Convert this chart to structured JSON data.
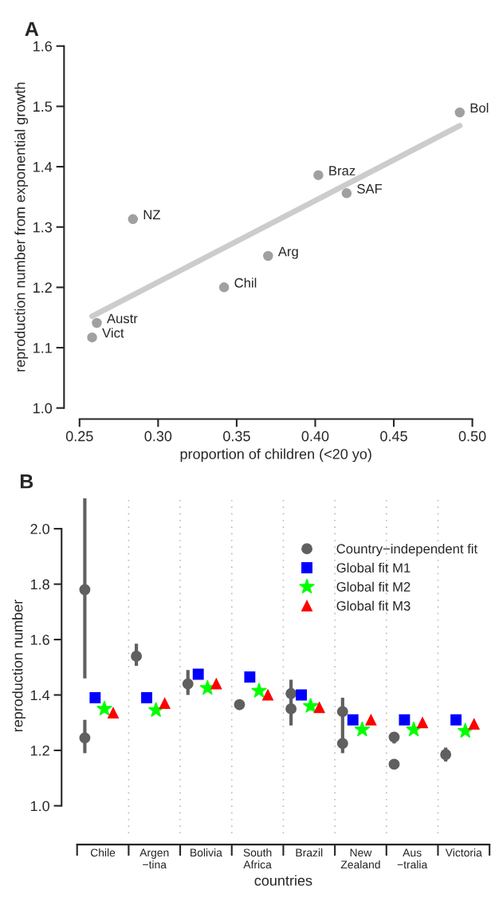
{
  "chart_data": [
    {
      "type": "scatter",
      "title": "A",
      "xlabel": "proportion of children (<20 yo)",
      "ylabel": "reproduction number from exponential growth",
      "xlim": [
        0.25,
        0.5
      ],
      "xticks": [
        {
          "value": 0.25,
          "label": "0.25"
        },
        {
          "value": 0.3,
          "label": "0.30"
        },
        {
          "value": 0.35,
          "label": "0.35"
        },
        {
          "value": 0.4,
          "label": "0.40"
        },
        {
          "value": 0.45,
          "label": "0.45"
        },
        {
          "value": 0.5,
          "label": "0.50"
        }
      ],
      "ylim": [
        1.0,
        1.6
      ],
      "yticks": [
        {
          "value": 1.0,
          "label": "1.0"
        },
        {
          "value": 1.1,
          "label": "1.1"
        },
        {
          "value": 1.2,
          "label": "1.2"
        },
        {
          "value": 1.3,
          "label": "1.3"
        },
        {
          "value": 1.4,
          "label": "1.4"
        },
        {
          "value": 1.5,
          "label": "1.5"
        },
        {
          "value": 1.6,
          "label": "1.6"
        }
      ],
      "grid": false,
      "legend": false,
      "series": [
        {
          "type": "line",
          "color": "#cccccc",
          "x": [
            0.258,
            0.492
          ],
          "values": [
            1.152,
            1.468
          ]
        },
        {
          "type": "scatter",
          "color": "#a0a0a0",
          "marker": "circle",
          "x": [
            0.492,
            0.402,
            0.42,
            0.284,
            0.37,
            0.342,
            0.261,
            0.258
          ],
          "values": [
            1.49,
            1.386,
            1.356,
            1.313,
            1.252,
            1.2,
            1.141,
            1.117
          ]
        }
      ],
      "annotations": [
        {
          "text": "Bol",
          "x": 0.492,
          "y": 1.49
        },
        {
          "text": "Braz",
          "x": 0.402,
          "y": 1.386
        },
        {
          "text": "SAF",
          "x": 0.42,
          "y": 1.356
        },
        {
          "text": "NZ",
          "x": 0.284,
          "y": 1.313
        },
        {
          "text": "Arg",
          "x": 0.37,
          "y": 1.252
        },
        {
          "text": "Chil",
          "x": 0.342,
          "y": 1.2
        },
        {
          "text": "Austr",
          "x": 0.261,
          "y": 1.141
        },
        {
          "text": "Vict",
          "x": 0.258,
          "y": 1.117
        }
      ]
    },
    {
      "type": "scatter",
      "title": "B",
      "xlabel": "countries",
      "ylabel": "reproduction number",
      "categories": [
        "Chile",
        "Argen\n−tina",
        "Bolivia",
        "South\nAfrica",
        "Brazil",
        "New\nZealand",
        "Aus\n−tralia",
        "Victoria"
      ],
      "ylim": [
        0.9,
        2.11
      ],
      "yticks": [
        {
          "value": 1.0,
          "label": "1.0"
        },
        {
          "value": 1.2,
          "label": "1.2"
        },
        {
          "value": 1.4,
          "label": "1.4"
        },
        {
          "value": 1.6,
          "label": "1.6"
        },
        {
          "value": 1.8,
          "label": "1.8"
        },
        {
          "value": 2.0,
          "label": "2.0"
        }
      ],
      "grid": "x",
      "legend": "top right",
      "series": [
        {
          "name": "Country−independent fit",
          "color": "#606060",
          "marker": "circle",
          "values": [
            1.78,
            1.54,
            1.44,
            1.365,
            1.405,
            1.34,
            1.248,
            1.185
          ],
          "errors": [
            [
              1.46,
              2.11
            ],
            [
              1.505,
              1.585
            ],
            [
              1.4,
              1.49
            ],
            null,
            [
              1.29,
              1.455
            ],
            [
              1.19,
              1.39
            ],
            [
              1.225,
              1.265
            ],
            [
              1.16,
              1.21
            ]
          ]
        },
        {
          "color": "#606060",
          "marker": "circle",
          "values": [
            1.245,
            null,
            null,
            null,
            1.35,
            1.225,
            1.15,
            null
          ],
          "errors": [
            [
              1.19,
              1.31
            ],
            null,
            null,
            null,
            null,
            null,
            null,
            null
          ]
        },
        {
          "name": "Global fit M1",
          "color": "#0000ff",
          "marker": "square",
          "values": [
            1.39,
            1.39,
            1.475,
            1.465,
            1.4,
            1.31,
            1.31,
            1.31
          ]
        },
        {
          "name": "Global fit M2",
          "color": "#00ff00",
          "marker": "star",
          "values": [
            1.35,
            1.345,
            1.425,
            1.415,
            1.36,
            1.275,
            1.275,
            1.27
          ]
        },
        {
          "name": "Global fit M3",
          "color": "#ff0000",
          "marker": "triangle",
          "values": [
            1.335,
            1.37,
            1.44,
            1.4,
            1.355,
            1.31,
            1.3,
            1.295
          ]
        }
      ]
    }
  ]
}
